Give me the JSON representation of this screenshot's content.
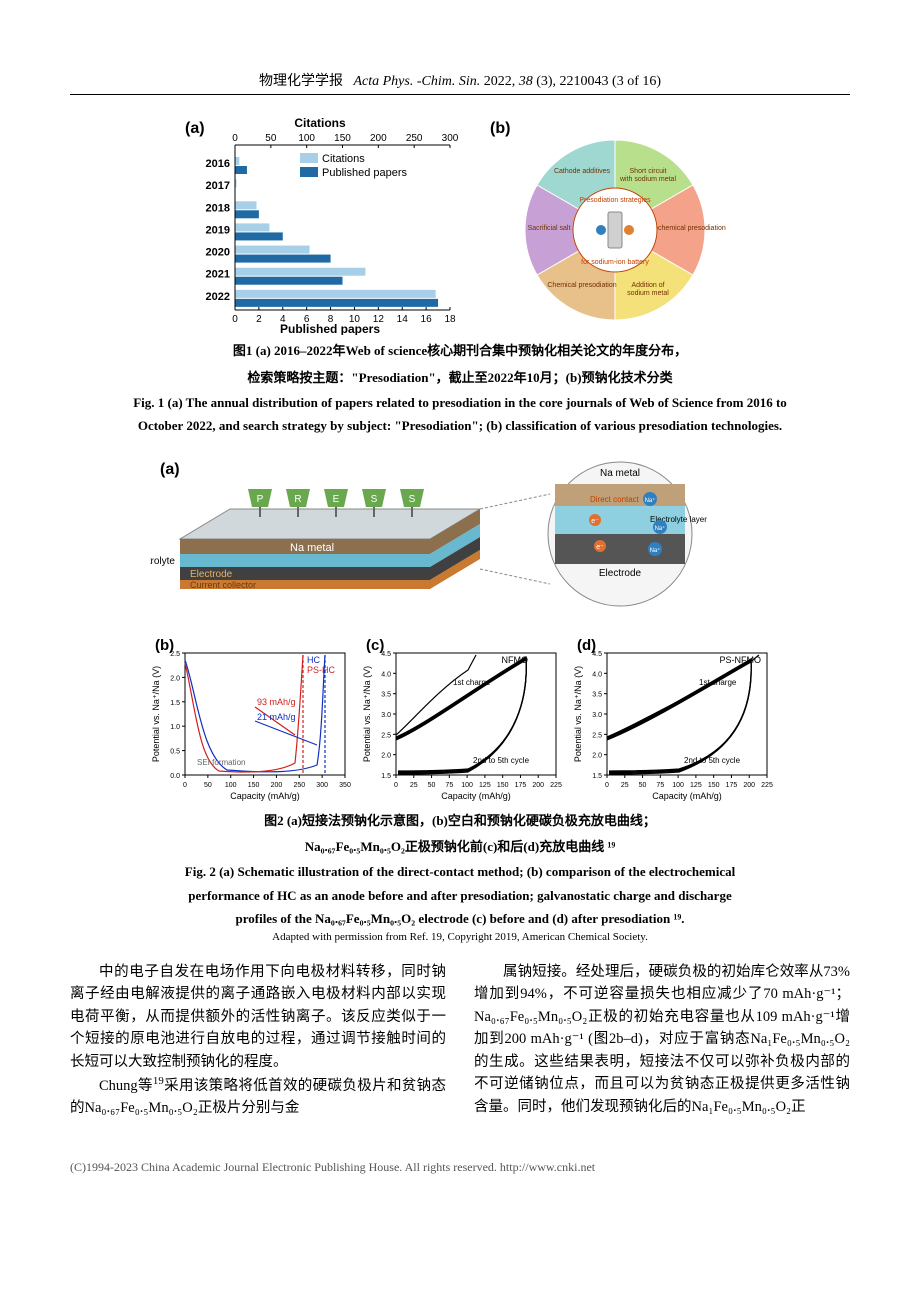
{
  "header": {
    "cn": "物理化学学报",
    "italic": "Acta Phys. -Chim. Sin.",
    "year_vol": "2022, ",
    "issue": "38",
    "rest": " (3), 2210043 (3  of  16)"
  },
  "fig1": {
    "panel_a": "(a)",
    "panel_b": "(b)",
    "chart": {
      "top_axis_label": "Citations",
      "top_ticks": [
        "0",
        "50",
        "100",
        "150",
        "200",
        "250",
        "300"
      ],
      "bottom_axis_label": "Published papers",
      "bottom_ticks": [
        "0",
        "2",
        "4",
        "6",
        "8",
        "10",
        "12",
        "14",
        "16",
        "18"
      ],
      "years": [
        "2016",
        "2017",
        "2018",
        "2019",
        "2020",
        "2021",
        "2022"
      ],
      "legend1": "Citations",
      "legend2": "Published papers",
      "citations": [
        6,
        2,
        30,
        48,
        104,
        182,
        280
      ],
      "papers": [
        1,
        0,
        2,
        4,
        8,
        9,
        17
      ],
      "cit_color": "#a7d0e8",
      "pap_color": "#1f6aa5"
    },
    "pie": {
      "center_text": "Presodiation strategies for sodium-ion battery",
      "slices": [
        {
          "label": "Short circuit with sodium metal",
          "color": "#b8e08c"
        },
        {
          "label": "Electrochemical presodiation",
          "color": "#f5a28a"
        },
        {
          "label": "Addition of sodium metal",
          "color": "#f5e17a"
        },
        {
          "label": "Chemical presodiation",
          "color": "#e8c08a"
        },
        {
          "label": "Sacrificial salt",
          "color": "#c7a0d6"
        },
        {
          "label": "Cathode additives",
          "color": "#9fd8d0"
        }
      ]
    },
    "caption_cn1": "图1   (a) 2016–2022年Web of science核心期刊合集中预钠化相关论文的年度分布，",
    "caption_cn2": "检索策略按主题：\"Presodiation\"，截止至2022年10月；(b)预钠化技术分类",
    "caption_en1": "Fig. 1   (a) The annual distribution of papers related to presodiation in the core journals of Web of Science from 2016 to",
    "caption_en2": "October 2022, and search strategy by subject: \"Presodiation\"; (b) classification of various presodiation technologies."
  },
  "fig2": {
    "panel_a": "(a)",
    "panel_b": "(b)",
    "panel_c": "(c)",
    "panel_d": "(d)",
    "schematic": {
      "na_metal": "Na metal",
      "electrolyte": "Electrolyte",
      "electrolyte_layer": "Electrolyte layer",
      "electrode": "Electrode",
      "current_collector": "Current collector",
      "direct_contact": "Direct contact",
      "press_letters": [
        "P",
        "R",
        "E",
        "S",
        "S"
      ]
    },
    "chart_b": {
      "ylabel": "Potential vs. Na⁺/Na (V)",
      "xlabel": "Capacity (mAh/g)",
      "xticks": [
        "0",
        "50",
        "100",
        "150",
        "200",
        "250",
        "300",
        "350"
      ],
      "yticks": [
        "0.0",
        "0.5",
        "1.0",
        "1.5",
        "2.0",
        "2.5"
      ],
      "legend1": "HC",
      "legend2": "PS-HC",
      "note1": "93 mAh/g",
      "note2": "21 mAh/g",
      "note3": "SEI formation",
      "hc_color": "#1030c0",
      "ps_color": "#d02020"
    },
    "chart_c": {
      "ylabel": "Potential vs. Na⁺/Na (V)",
      "xlabel": "Capacity (mAh/g)",
      "xticks": [
        "0",
        "25",
        "50",
        "75",
        "100",
        "125",
        "150",
        "175",
        "200",
        "225"
      ],
      "yticks": [
        "1.5",
        "2.0",
        "2.5",
        "3.0",
        "3.5",
        "4.0",
        "4.5"
      ],
      "title": "NFMO",
      "note1": "1st charge",
      "note2": "2nd to 5th cycle"
    },
    "chart_d": {
      "ylabel": "Potential vs. Na⁺/Na (V)",
      "xlabel": "Capacity (mAh/g)",
      "xticks": [
        "0",
        "25",
        "50",
        "75",
        "100",
        "125",
        "150",
        "175",
        "200",
        "225"
      ],
      "yticks": [
        "1.5",
        "2.0",
        "2.5",
        "3.0",
        "3.5",
        "4.0",
        "4.5"
      ],
      "title": "PS-NFMO",
      "note1": "1st charge",
      "note2": "2nd to 5th cycle"
    },
    "caption_cn1": "图2   (a)短接法预钠化示意图，(b)空白和预钠化硬碳负极充放电曲线；",
    "caption_cn2": "Na₀.₆₇Fe₀.₅Mn₀.₅O₂正极预钠化前(c)和后(d)充放电曲线 ¹⁹",
    "caption_en1": "Fig. 2   (a) Schematic illustration of the direct-contact method; (b) comparison of the electrochemical",
    "caption_en2": "performance of HC as an anode before and after presodiation; galvanostatic charge and discharge",
    "caption_en3": "profiles of the Na₀.₆₇Fe₀.₅Mn₀.₅O₂ electrode (c) before and (d) after presodiation ¹⁹.",
    "permission": "Adapted with permission from Ref. 19, Copyright 2019, American Chemical Society."
  },
  "body": {
    "p1": "中的电子自发在电场作用下向电极材料转移，同时钠离子经由电解液提供的离子通路嵌入电极材料内部以实现电荷平衡，从而提供额外的活性钠离子。该反应类似于一个短接的原电池进行自放电的过程，通过调节接触时间的长短可以大致控制预钠化的程度。",
    "p2a": "Chung等",
    "p2sup": "19",
    "p2b": "采用该策略将低首效的硬碳负极片和贫钠态的Na₀.₆₇Fe₀.₅Mn₀.₅O₂正极片分别与金",
    "p3a": "属钠短接。经处理后，硬碳负极的初始库仑效率从73%增加到94%，不可逆容量损失也相应减少了70 mAh·g⁻¹；Na₀.₆₇Fe₀.₅Mn₀.₅O₂正极的初始充电容量也从109 mAh·g⁻¹增加到200 mAh·g⁻¹ (图2b–d)，对应于富钠态Na₁Fe₀.₅Mn₀.₅O₂的生成。这些结果表明，短接法不仅可以弥补负极内部的不可逆储钠位点，而且可以为贫钠态正极提供更多活性钠含量。同时，他们发现预钠化后的Na₁Fe₀.₅Mn₀.₅O₂正"
  },
  "footer": "(C)1994-2023 China Academic Journal Electronic Publishing House. All rights reserved.    http://www.cnki.net"
}
